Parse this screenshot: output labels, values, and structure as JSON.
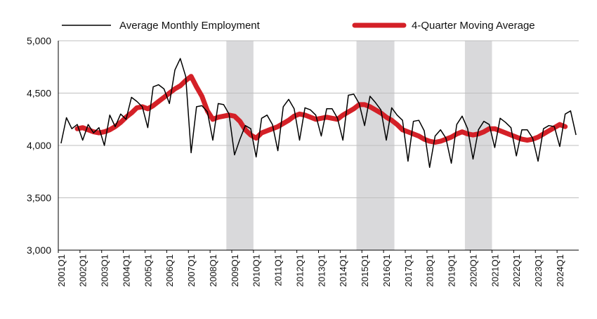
{
  "chart_data": {
    "type": "line",
    "title": "",
    "xlabel": "",
    "ylabel": "",
    "ylim": [
      3000,
      5000
    ],
    "yticks": [
      "3,000",
      "3,500",
      "4,000",
      "4,500",
      "5,000"
    ],
    "ytick_values": [
      3000,
      3500,
      4000,
      4500,
      5000
    ],
    "grid": true,
    "legend_position": "top",
    "x_labels": [
      "2001Q1",
      "2002Q1",
      "2003Q1",
      "2004Q1",
      "2005Q1",
      "2006Q1",
      "2007Q1",
      "2008Q1",
      "2009Q1",
      "2010Q1",
      "2011Q1",
      "2012Q1",
      "2013Q1",
      "2014Q1",
      "2015Q1",
      "2016Q1",
      "2017Q1",
      "2018Q1",
      "2019Q1",
      "2020Q1",
      "2021Q1",
      "2022Q1",
      "2023Q1",
      "2024Q1"
    ],
    "shaded_periods": [
      {
        "start": "2008Q4",
        "end": "2009Q4"
      },
      {
        "start": "2014Q4",
        "end": "2016Q2"
      },
      {
        "start": "2019Q4",
        "end": "2020Q4"
      }
    ],
    "series": [
      {
        "name": "Average Monthly Employment",
        "color": "#000000",
        "values": [
          4020,
          4265,
          4160,
          4200,
          4050,
          4200,
          4120,
          4170,
          4000,
          4290,
          4180,
          4300,
          4250,
          4460,
          4420,
          4370,
          4170,
          4560,
          4580,
          4540,
          4400,
          4720,
          4830,
          4660,
          3930,
          4370,
          4380,
          4320,
          4050,
          4400,
          4390,
          4300,
          3910,
          4060,
          4190,
          4160,
          3890,
          4260,
          4290,
          4200,
          3950,
          4370,
          4440,
          4350,
          4050,
          4360,
          4340,
          4290,
          4090,
          4350,
          4350,
          4260,
          4050,
          4480,
          4490,
          4400,
          4190,
          4470,
          4410,
          4340,
          4050,
          4360,
          4290,
          4240,
          3850,
          4230,
          4240,
          4140,
          3790,
          4090,
          4150,
          4070,
          3830,
          4200,
          4280,
          4160,
          3870,
          4150,
          4230,
          4200,
          3980,
          4260,
          4220,
          4170,
          3900,
          4150,
          4150,
          4070,
          3850,
          4160,
          4190,
          4180,
          3990,
          4300,
          4330,
          4100
        ]
      },
      {
        "name": "4-Quarter Moving Average",
        "color": "#d42027",
        "start_index": 3,
        "values": [
          4160,
          4170,
          4150,
          4130,
          4120,
          4130,
          4150,
          4180,
          4220,
          4270,
          4310,
          4360,
          4370,
          4350,
          4380,
          4420,
          4460,
          4500,
          4540,
          4570,
          4620,
          4660,
          4560,
          4470,
          4330,
          4250,
          4270,
          4280,
          4290,
          4280,
          4230,
          4150,
          4100,
          4070,
          4120,
          4140,
          4160,
          4180,
          4210,
          4240,
          4280,
          4300,
          4290,
          4270,
          4250,
          4260,
          4270,
          4260,
          4250,
          4290,
          4320,
          4350,
          4390,
          4390,
          4370,
          4340,
          4310,
          4270,
          4240,
          4200,
          4150,
          4130,
          4110,
          4090,
          4060,
          4040,
          4030,
          4040,
          4060,
          4080,
          4110,
          4130,
          4110,
          4100,
          4110,
          4130,
          4160,
          4160,
          4140,
          4120,
          4100,
          4080,
          4060,
          4050,
          4060,
          4080,
          4110,
          4140,
          4170,
          4200,
          4180
        ]
      }
    ]
  }
}
